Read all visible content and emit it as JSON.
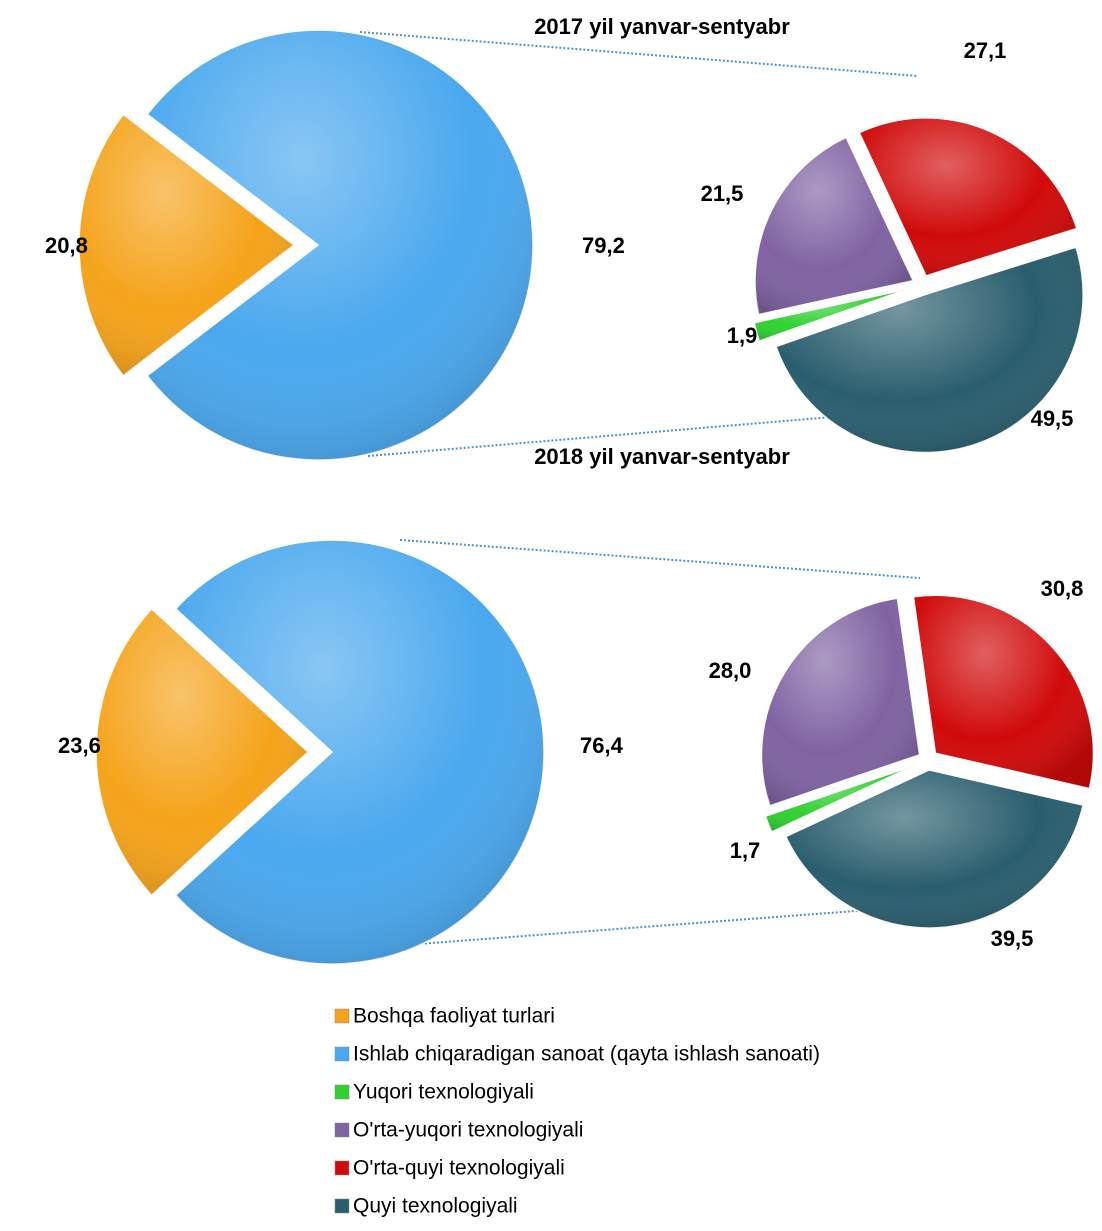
{
  "legend": {
    "categories": [
      "Boshqa faoliyat turlari",
      "Ishlab chiqaradigan sanoat (qayta ishlash sanoati)",
      "Yuqori texnologiyali",
      "O'rta-yuqori texnologiyali",
      "O'rta-quyi texnologiyali",
      "Quyi texnologiyali"
    ],
    "colors": [
      "#f5a31a",
      "#4aa8ee",
      "#2fd12f",
      "#8063a3",
      "#d10a0a",
      "#2a5e6e"
    ]
  },
  "chart_data": [
    {
      "type": "pie",
      "title": "2017 yil yanvar-sentyabr",
      "values": [
        20.8,
        79.2
      ],
      "value_labels": [
        "20,8",
        "79,2"
      ],
      "sub_values": [
        1.9,
        21.5,
        27.1,
        49.5
      ],
      "sub_value_labels": [
        "1,9",
        "21,5",
        "27,1",
        "49,5"
      ]
    },
    {
      "type": "pie",
      "title": "2018 yil yanvar-sentyabr",
      "values": [
        23.6,
        76.4
      ],
      "value_labels": [
        "23,6",
        "76,4"
      ],
      "sub_values": [
        1.7,
        28.0,
        30.8,
        39.5
      ],
      "sub_value_labels": [
        "1,7",
        "28,0",
        "30,8",
        "39,5"
      ]
    }
  ]
}
